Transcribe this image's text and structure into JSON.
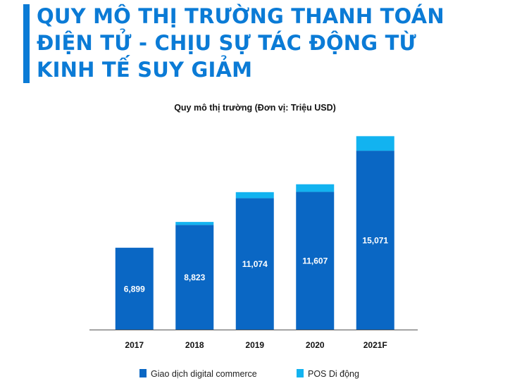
{
  "headline": {
    "lines": [
      "QUY MÔ THỊ TRƯỜNG THANH TOÁN",
      "ĐIỆN TỬ - CHỊU SỰ TÁC ĐỘNG TỪ",
      "KINH TẾ SUY GIẢM"
    ]
  },
  "colors": {
    "headline": "#0b7bd6",
    "digital_commerce": "#0a67c4",
    "pos": "#12b3f0",
    "baseline": "#555555",
    "data_label": "#ffffff",
    "text": "#111111"
  },
  "chart_data": {
    "type": "bar",
    "stacked": true,
    "title": "Quy mô thị trường (Đơn vị: Triệu USD)",
    "xlabel": "",
    "ylabel": "",
    "categories": [
      "2017",
      "2018",
      "2019",
      "2020",
      "2021F"
    ],
    "series": [
      {
        "name": "Giao dịch digital commerce",
        "values": [
          6899,
          8823,
          11074,
          11607,
          15071
        ],
        "data_labels": [
          "6,899",
          "8,823",
          "11,074",
          "11,607",
          "15,071"
        ]
      },
      {
        "name": "POS Di động",
        "values": [
          0,
          250,
          510,
          640,
          1230
        ]
      }
    ],
    "ylim": [
      0,
      16500
    ],
    "grid": false,
    "y_axis_visible": false,
    "legend": "bottom"
  }
}
